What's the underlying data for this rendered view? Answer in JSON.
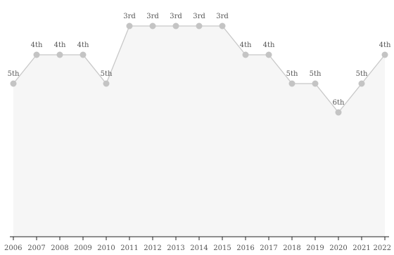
{
  "chart_data": {
    "type": "area",
    "title": "",
    "xlabel": "",
    "ylabel": "",
    "y_axis": "reversed rank",
    "ylim": [
      8.5,
      2.5
    ],
    "grid": false,
    "categories": [
      "2006",
      "2007",
      "2008",
      "2009",
      "2010",
      "2011",
      "2012",
      "2013",
      "2014",
      "2015",
      "2016",
      "2017",
      "2018",
      "2019",
      "2020",
      "2021",
      "2022"
    ],
    "series": [
      {
        "values": [
          5,
          4,
          4,
          4,
          5,
          3,
          3,
          3,
          3,
          3,
          4,
          4,
          5,
          5,
          6,
          5,
          4
        ],
        "labels": [
          "5th",
          "4th",
          "4th",
          "4th",
          "5th",
          "3rd",
          "3rd",
          "3rd",
          "3rd",
          "3rd",
          "4th",
          "4th",
          "5th",
          "5th",
          "6th",
          "5th",
          "4th"
        ]
      }
    ],
    "colors": {
      "line": "#c8c8c8",
      "marker": "#c4c4c4",
      "fill": "#f6f6f6",
      "axis": "#222222",
      "text": "#555555"
    }
  }
}
